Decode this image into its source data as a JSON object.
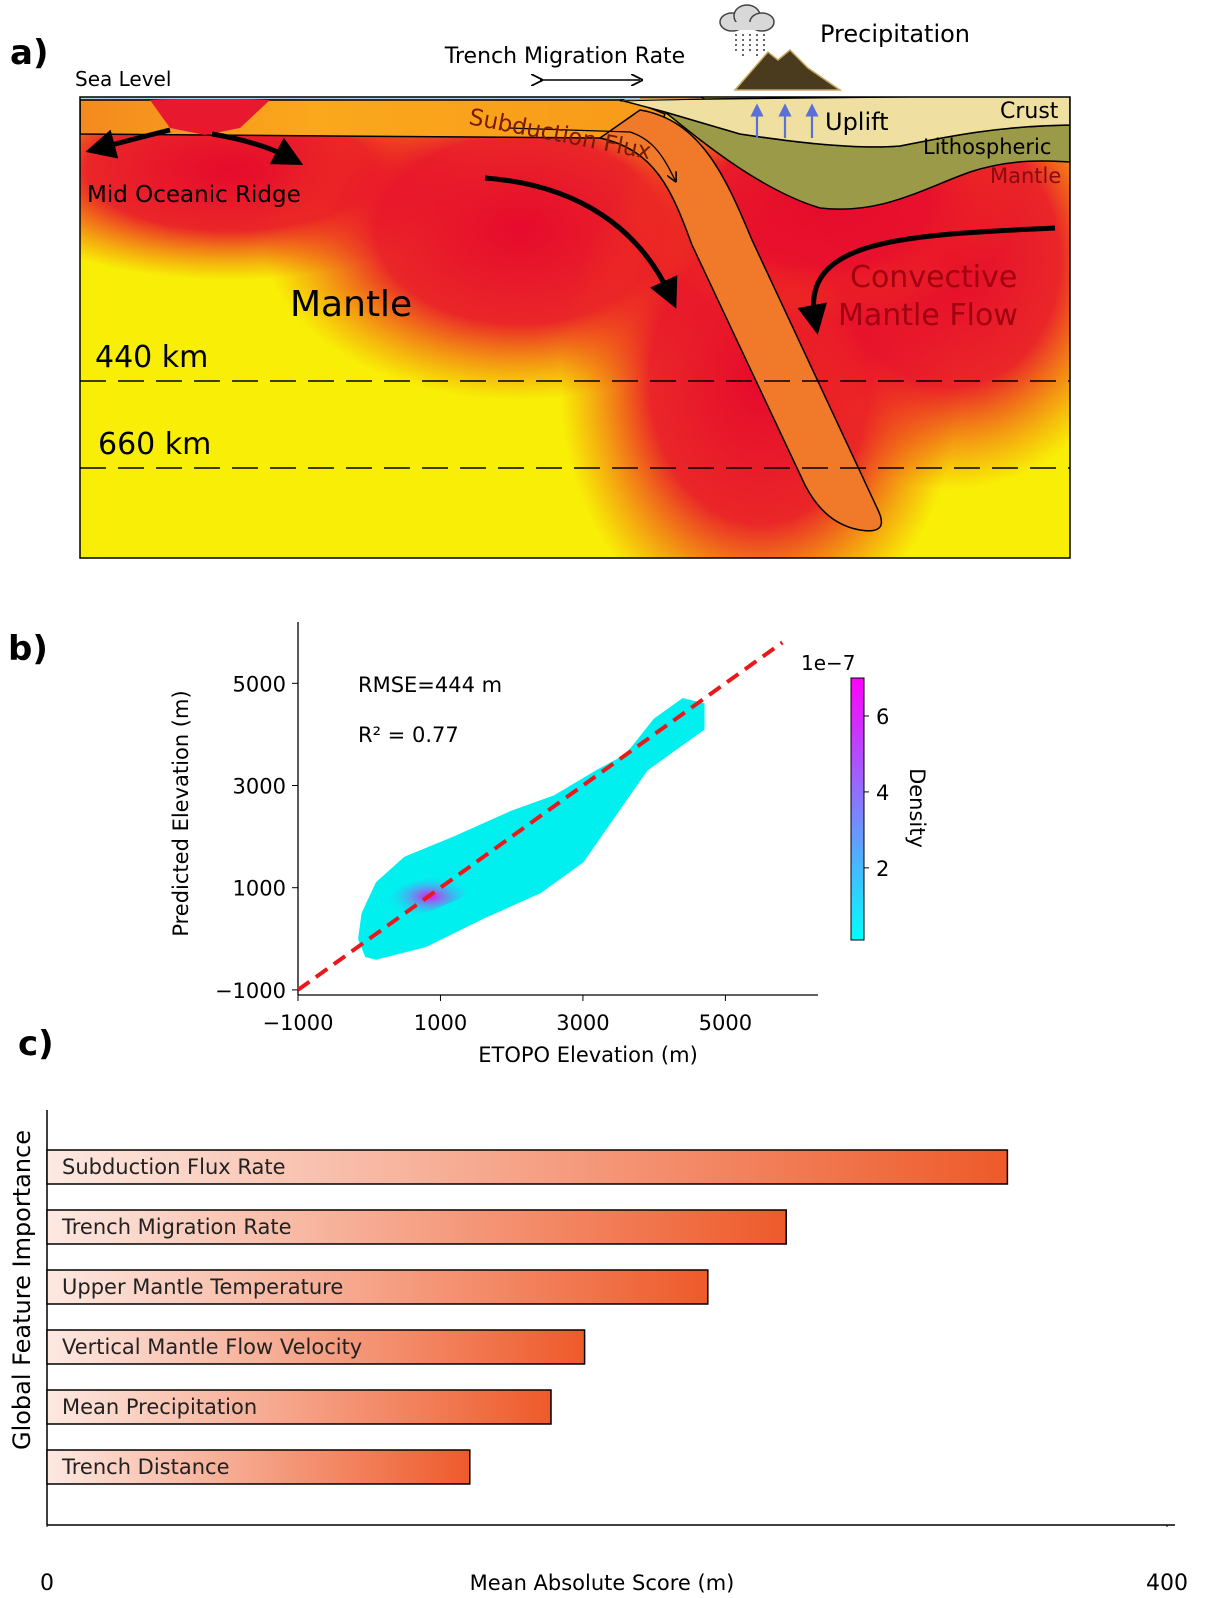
{
  "panel_labels": [
    "a)",
    "b)",
    "c)"
  ],
  "diagram": {
    "sea_level": "Sea Level",
    "trench_migration": "Trench Migration Rate",
    "precipitation": "Precipitation",
    "subduction_flux": "Subduction Flux",
    "uplift": "Uplift",
    "crust": "Crust",
    "lithospheric_mantle": [
      "Lithospheric",
      "Mantle"
    ],
    "ridge": "Mid Oceanic Ridge",
    "mantle": "Mantle",
    "convective_flow": [
      "Convective",
      "Mantle Flow"
    ],
    "depth_440": "440 km",
    "depth_660": "660 km"
  },
  "chart_data": [
    {
      "type": "density",
      "xlabel": "ETOPO Elevation (m)",
      "ylabel": "Predicted Elevation (m)",
      "xlim": [
        -1000,
        6300
      ],
      "ylim": [
        -1100,
        6200
      ],
      "xticks": [
        {
          "value": -1000,
          "label": "−1000"
        },
        1000,
        3000,
        5000
      ],
      "yticks": [
        {
          "value": -1000,
          "label": "−1000"
        },
        1000,
        3000,
        5000
      ],
      "annotations": [
        "RMSE=444 m",
        "R² = 0.77"
      ],
      "outline": {
        "x": [
          100,
          800,
          1600,
          2400,
          3000,
          3500,
          3900,
          4400,
          4700,
          4700,
          4400,
          4000,
          3600,
          3200,
          2600,
          2000,
          1200,
          500,
          100,
          -100,
          -150,
          -50
        ],
        "y": [
          -400,
          -150,
          400,
          900,
          1500,
          2500,
          3300,
          3800,
          4100,
          4600,
          4700,
          4300,
          3600,
          3300,
          2800,
          2500,
          2000,
          1600,
          1100,
          500,
          0,
          -350
        ]
      },
      "core": {
        "x": [
          200,
          700,
          1300,
          1500,
          1000,
          500,
          250
        ],
        "y": [
          400,
          450,
          800,
          1200,
          1250,
          1050,
          800
        ]
      },
      "identity_line": {
        "x": [
          -1000,
          5800
        ],
        "y": [
          -1000,
          5800
        ],
        "color": "#e8181b"
      },
      "outline_color": "#00f0f0",
      "core_color": "#ee10ee",
      "colorbar": {
        "label": "Density",
        "offset": "1e−7",
        "clim": [
          0.1,
          7
        ],
        "ticks": [
          2,
          4,
          6
        ],
        "colors": [
          "#00ffff",
          "#ff00ff"
        ]
      }
    },
    {
      "type": "hbar",
      "xlabel": "Mean Absolute Score (m)",
      "ylabel": "Global Feature Importance",
      "categories": [
        "Subduction Flux Rate",
        "Trench Migration Rate",
        "Upper Mantle Temperature",
        "Vertical Mantle Flow Velocity",
        "Mean Precipitation",
        "Trench Distance"
      ],
      "values": [
        343,
        264,
        236,
        192,
        180,
        151
      ],
      "xlim": [
        0,
        400
      ],
      "xticks": [
        0,
        400
      ],
      "colors": [
        "#fde9e2",
        "#ee5a2a"
      ]
    }
  ]
}
